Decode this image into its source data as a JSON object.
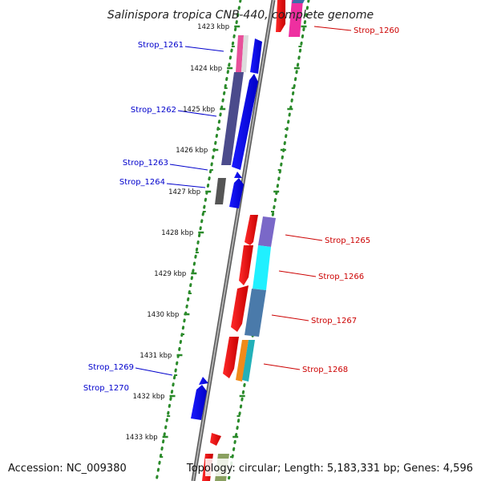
{
  "title": "Salinispora tropica CNB-440, complete genome",
  "footer": {
    "accession": "Accession: NC_009380",
    "info": "Topology: circular; Length: 5,183,331 bp; Genes: 4,596"
  },
  "colors": {
    "backbone": "#8c8c8c",
    "tick": "#2a8a2a",
    "ruler_dots": "#2a8a2a",
    "reverse_label": "#0000cc",
    "forward_label": "#cc0000"
  },
  "scale": {
    "unit": "kbp",
    "labels": [
      "1423 kbp",
      "1424 kbp",
      "1425 kbp",
      "1426 kbp",
      "1427 kbp",
      "1428 kbp",
      "1429 kbp",
      "1430 kbp",
      "1431 kbp",
      "1432 kbp",
      "1433 kbp"
    ]
  },
  "gene_labels": [
    {
      "name": "Strop_1260",
      "strand": "forward"
    },
    {
      "name": "Strop_1261",
      "strand": "reverse"
    },
    {
      "name": "Strop_1262",
      "strand": "reverse"
    },
    {
      "name": "Strop_1263",
      "strand": "reverse"
    },
    {
      "name": "Strop_1264",
      "strand": "reverse"
    },
    {
      "name": "Strop_1265",
      "strand": "forward"
    },
    {
      "name": "Strop_1266",
      "strand": "forward"
    },
    {
      "name": "Strop_1267",
      "strand": "forward"
    },
    {
      "name": "Strop_1268",
      "strand": "forward"
    },
    {
      "name": "Strop_1269",
      "strand": "reverse"
    },
    {
      "name": "Strop_1270",
      "strand": "reverse"
    }
  ]
}
